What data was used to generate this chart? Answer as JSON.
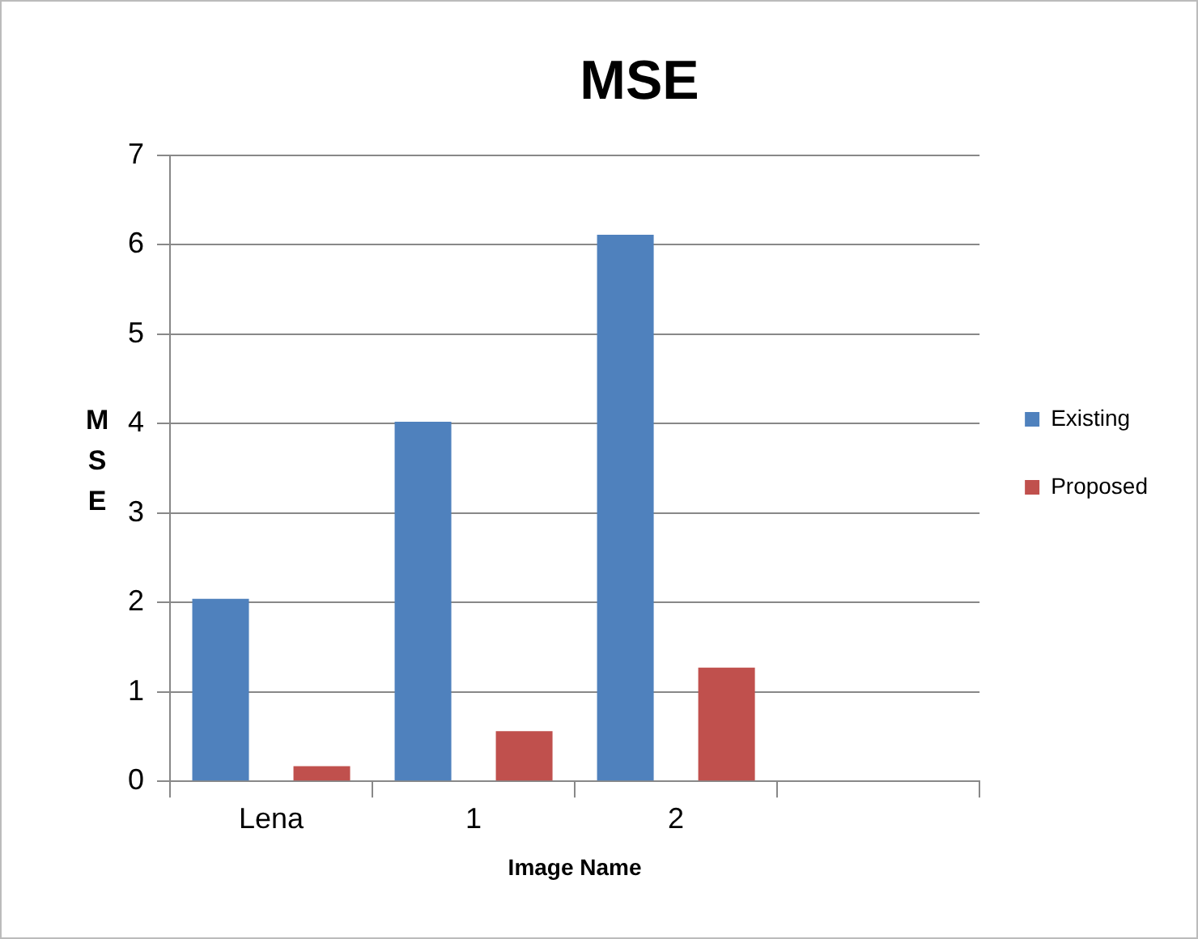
{
  "chart_data": {
    "type": "bar",
    "title": "MSE",
    "xlabel": "Image Name",
    "ylabel": "MSE",
    "categories": [
      "Lena",
      "1",
      "2",
      null
    ],
    "series": [
      {
        "name": "Existing",
        "color": "#4f81bd",
        "values": [
          2.04,
          4.02,
          6.11,
          null
        ]
      },
      {
        "name": "Proposed",
        "color": "#c0504d",
        "values": [
          0.17,
          0.56,
          1.27,
          null
        ]
      }
    ],
    "ylim": [
      0,
      7
    ],
    "yticks": [
      0,
      1,
      2,
      3,
      4,
      5,
      6,
      7
    ],
    "grid": "y",
    "legend": "right"
  }
}
